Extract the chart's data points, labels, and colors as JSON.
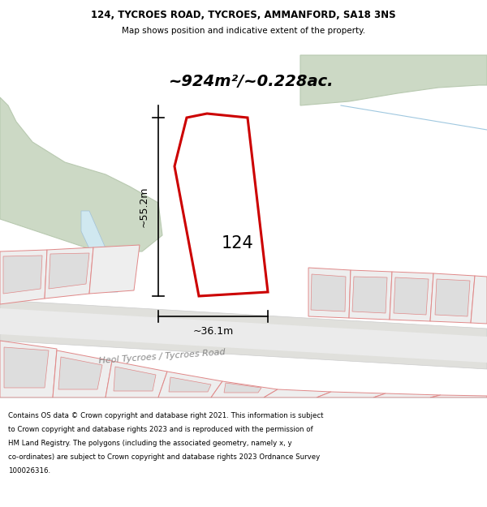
{
  "title_line1": "124, TYCROES ROAD, TYCROES, AMMANFORD, SA18 3NS",
  "title_line2": "Map shows position and indicative extent of the property.",
  "area_label": "~924m²/~0.228ac.",
  "label_124": "124",
  "label_width": "~36.1m",
  "label_height": "~55.2m",
  "road_label": "Heol Tycroes / Tycroes Road",
  "footer_lines": [
    "Contains OS data © Crown copyright and database right 2021. This information is subject",
    "to Crown copyright and database rights 2023 and is reproduced with the permission of",
    "HM Land Registry. The polygons (including the associated geometry, namely x, y",
    "co-ordinates) are subject to Crown copyright and database rights 2023 Ordnance Survey",
    "100026316."
  ],
  "bg_color": "#ffffff",
  "map_bg": "#ffffff",
  "plot_fill": "#ffffff",
  "plot_edge": "#cc0000",
  "other_plots_fill": "#eeeeee",
  "other_plots_edge": "#e08888",
  "green_area_fill": "#ccd9c5",
  "green_area_edge": "#b8c9b0",
  "road_fill": "#e0e0dc",
  "road_edge": "#cccccc"
}
